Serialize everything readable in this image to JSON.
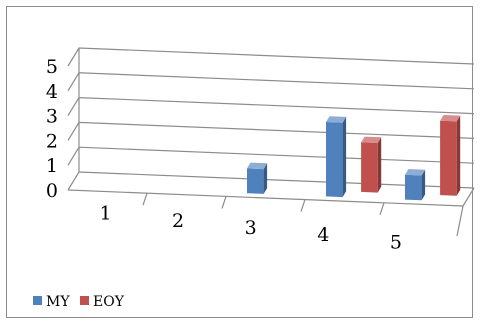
{
  "chart_data": {
    "type": "bar",
    "style": "3d-clustered-column",
    "categories": [
      "1",
      "2",
      "3",
      "4",
      "5"
    ],
    "series": [
      {
        "name": "MY",
        "color": "#4f81bd",
        "values": [
          0,
          0,
          1,
          3,
          1
        ]
      },
      {
        "name": "EOY",
        "color": "#c0504d",
        "values": [
          0,
          0,
          0,
          2,
          3
        ]
      }
    ],
    "y_ticks": [
      "0",
      "1",
      "2",
      "3",
      "4",
      "5"
    ],
    "ylim": [
      0,
      5
    ],
    "grid": true,
    "legend_position": "bottom-left"
  }
}
